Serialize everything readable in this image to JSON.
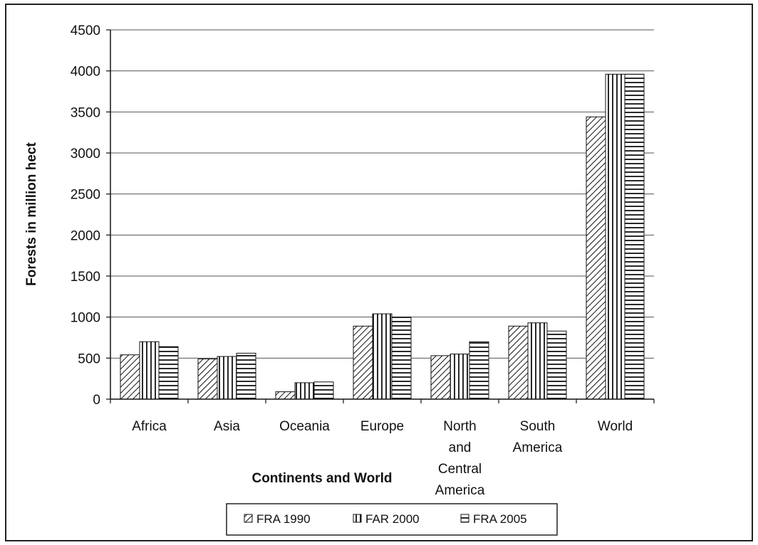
{
  "chart_data": {
    "type": "bar",
    "title": "",
    "xlabel": "Continents and World",
    "ylabel": "Forests in million hect",
    "ylim": [
      0,
      4500
    ],
    "yticks": [
      "0",
      "500",
      "1000",
      "1500",
      "2000",
      "2500",
      "3000",
      "3500",
      "4000",
      "4500"
    ],
    "grid": true,
    "legend_position": "bottom",
    "categories": [
      [
        "Africa"
      ],
      [
        "Asia"
      ],
      [
        "Oceania"
      ],
      [
        "Europe"
      ],
      [
        "North",
        "and",
        "Central",
        "America"
      ],
      [
        "South",
        "America"
      ],
      [
        "World"
      ]
    ],
    "series": [
      {
        "name": "FRA 1990",
        "pattern": "diagonal",
        "values": [
          540,
          490,
          90,
          890,
          530,
          890,
          3440
        ]
      },
      {
        "name": "FAR 2000",
        "pattern": "vertical",
        "values": [
          700,
          520,
          200,
          1040,
          550,
          930,
          3960
        ]
      },
      {
        "name": "FRA 2005",
        "pattern": "horizontal",
        "values": [
          640,
          560,
          210,
          1000,
          700,
          830,
          3960
        ]
      }
    ],
    "colors": {
      "bar_fill": "#ffffff",
      "stroke": "#111111",
      "grid": "#555555"
    }
  }
}
